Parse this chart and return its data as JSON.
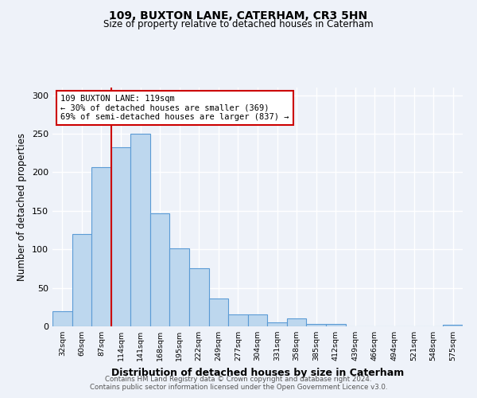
{
  "title": "109, BUXTON LANE, CATERHAM, CR3 5HN",
  "subtitle": "Size of property relative to detached houses in Caterham",
  "xlabel": "Distribution of detached houses by size in Caterham",
  "ylabel": "Number of detached properties",
  "bar_labels": [
    "32sqm",
    "60sqm",
    "87sqm",
    "114sqm",
    "141sqm",
    "168sqm",
    "195sqm",
    "222sqm",
    "249sqm",
    "277sqm",
    "304sqm",
    "331sqm",
    "358sqm",
    "385sqm",
    "412sqm",
    "439sqm",
    "466sqm",
    "494sqm",
    "521sqm",
    "548sqm",
    "575sqm"
  ],
  "bar_values": [
    20,
    120,
    207,
    233,
    250,
    147,
    101,
    75,
    36,
    15,
    15,
    5,
    10,
    3,
    3,
    0,
    0,
    0,
    0,
    0,
    2
  ],
  "bar_color": "#bdd7ee",
  "bar_edge_color": "#5b9bd5",
  "background_color": "#eef2f9",
  "grid_color": "#ffffff",
  "vline_color": "#cc0000",
  "annotation_text": "109 BUXTON LANE: 119sqm\n← 30% of detached houses are smaller (369)\n69% of semi-detached houses are larger (837) →",
  "annotation_box_color": "#cc0000",
  "ylim": [
    0,
    310
  ],
  "yticks": [
    0,
    50,
    100,
    150,
    200,
    250,
    300
  ],
  "footer_line1": "Contains HM Land Registry data © Crown copyright and database right 2024.",
  "footer_line2": "Contains public sector information licensed under the Open Government Licence v3.0."
}
